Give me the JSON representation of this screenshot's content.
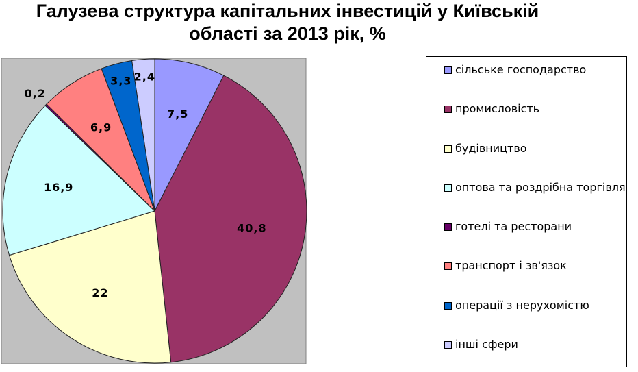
{
  "chart_data": {
    "type": "pie",
    "title": "Галузева структура капітальних інвестицій у Київській області за 2013 рік, %",
    "categories": [
      "сільське господарство",
      "промисловість",
      "будівництво",
      "оптова та роздрібна торгівля",
      "готелі та ресторани",
      "транспорт і зв'язок",
      "операції з нерухомістю",
      "інші сфери"
    ],
    "values": [
      7.5,
      40.8,
      22,
      16.9,
      0.2,
      6.9,
      3.3,
      2.4
    ],
    "value_labels": [
      "7,5",
      "40,8",
      "22",
      "16,9",
      "0,2",
      "6,9",
      "3,3",
      "2,4"
    ],
    "colors": [
      "#9999ff",
      "#993366",
      "#ffffcc",
      "#ccffff",
      "#660066",
      "#ff8080",
      "#0066cc",
      "#ccccff"
    ],
    "legend": "right"
  }
}
